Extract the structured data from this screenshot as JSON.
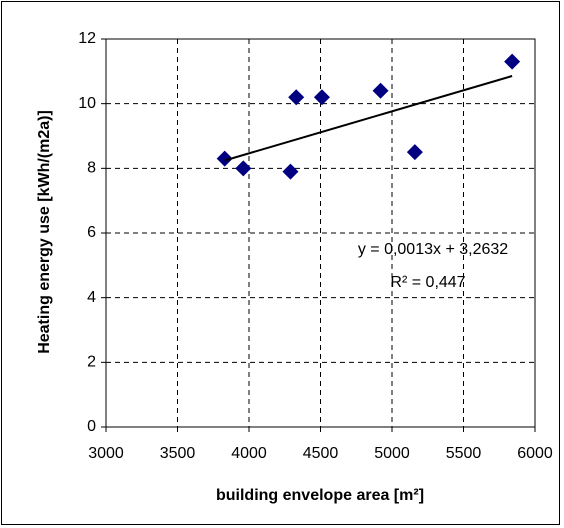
{
  "chart_data": {
    "type": "scatter",
    "xlabel": "building envelope area [m²]",
    "ylabel": "Heating energy use [kWh/(m2a)]",
    "x": [
      3830,
      3960,
      4290,
      4330,
      4510,
      4920,
      5160,
      5840
    ],
    "series": [
      {
        "color": "#000080",
        "values": [
          8.3,
          8.0,
          7.9,
          10.2,
          10.2,
          10.4,
          8.5,
          11.3
        ]
      }
    ],
    "xlim": [
      3000,
      6000
    ],
    "xticks": [
      3000,
      3500,
      4000,
      4500,
      5000,
      5500,
      6000
    ],
    "ylim": [
      0,
      12
    ],
    "yticks": [
      0,
      2,
      4,
      6,
      8,
      10,
      12
    ],
    "grid": true,
    "trendline": {
      "slope": 0.0013,
      "intercept": 3.2632,
      "equation": "y = 0,0013x + 3,2632",
      "r2": 0.447,
      "r2_label": "R² = 0,447",
      "color": "#000000"
    }
  }
}
